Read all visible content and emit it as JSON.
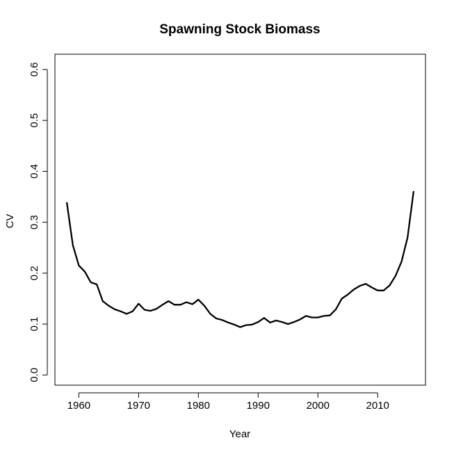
{
  "chart_data": {
    "type": "line",
    "title": "Spawning Stock Biomass",
    "xlabel": "Year",
    "ylabel": "CV",
    "xlim": [
      1956,
      2018
    ],
    "ylim": [
      -0.02,
      0.63
    ],
    "x_ticks": [
      1960,
      1970,
      1980,
      1990,
      2000,
      2010
    ],
    "y_ticks": [
      0.0,
      0.1,
      0.2,
      0.3,
      0.4,
      0.5,
      0.6
    ],
    "y_tick_labels": [
      "0.0",
      "0.1",
      "0.2",
      "0.3",
      "0.4",
      "0.5",
      "0.6"
    ],
    "grid": false,
    "line_color": "#000000",
    "series": [
      {
        "x": [
          1958,
          1959,
          1960,
          1961,
          1962,
          1963,
          1964,
          1965,
          1966,
          1967,
          1968,
          1969,
          1970,
          1971,
          1972,
          1973,
          1974,
          1975,
          1976,
          1977,
          1978,
          1979,
          1980,
          1981,
          1982,
          1983,
          1984,
          1985,
          1986,
          1987,
          1988,
          1989,
          1990,
          1991,
          1992,
          1993,
          1994,
          1995,
          1996,
          1997,
          1998,
          1999,
          2000,
          2001,
          2002,
          2003,
          2004,
          2005,
          2006,
          2007,
          2008,
          2009,
          2010,
          2011,
          2012,
          2013,
          2014,
          2015,
          2016
        ],
        "values": [
          0.338,
          0.255,
          0.215,
          0.203,
          0.182,
          0.178,
          0.145,
          0.136,
          0.129,
          0.125,
          0.12,
          0.125,
          0.14,
          0.128,
          0.126,
          0.13,
          0.138,
          0.145,
          0.138,
          0.138,
          0.143,
          0.139,
          0.148,
          0.136,
          0.12,
          0.111,
          0.108,
          0.103,
          0.099,
          0.094,
          0.098,
          0.099,
          0.104,
          0.112,
          0.103,
          0.107,
          0.104,
          0.1,
          0.104,
          0.109,
          0.116,
          0.113,
          0.113,
          0.116,
          0.117,
          0.129,
          0.15,
          0.158,
          0.168,
          0.175,
          0.179,
          0.172,
          0.166,
          0.166,
          0.176,
          0.195,
          0.223,
          0.27,
          0.36
        ]
      }
    ]
  }
}
